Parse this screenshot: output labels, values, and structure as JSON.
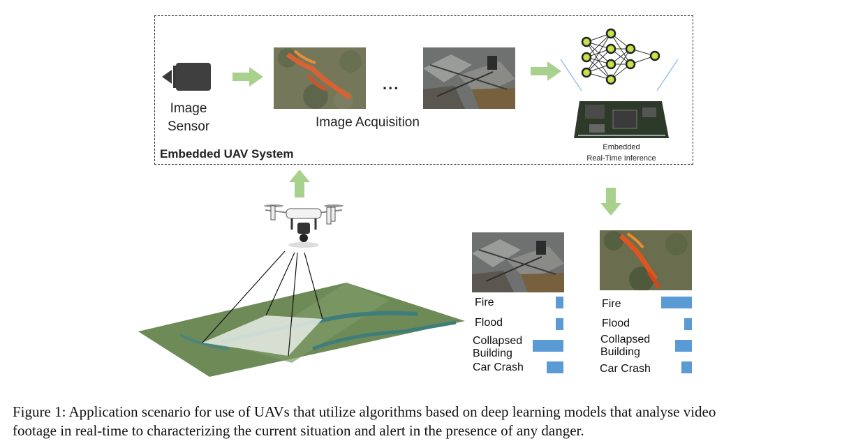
{
  "sensor_label_line1": "Image",
  "sensor_label_line2": "Sensor",
  "acquisition_label": "Image Acquisition",
  "ellipsis": "...",
  "system_label": "Embedded UAV System",
  "inference_label_line1": "Embedded",
  "inference_label_line2": "Real-Time Inference",
  "results": [
    {
      "image": "collapsed-building-photo",
      "scores": {
        "fire": 0.25,
        "flood": 0.25,
        "collapsed_building": 1.0,
        "car_crash": 0.55
      }
    },
    {
      "image": "fire-photo",
      "scores": {
        "fire": 1.0,
        "flood": 0.25,
        "collapsed_building": 0.55,
        "car_crash": 0.35
      }
    }
  ],
  "class_labels": {
    "fire": "Fire",
    "flood": "Flood",
    "collapsed_line1": "Collapsed",
    "collapsed_line2": "Building",
    "car_crash": "Car Crash"
  },
  "caption_line1": "Figure 1: Application scenario for use of UAVs that utilize algorithms based on deep learning models that analyse video",
  "caption_line2": "footage in real-time to characterizing the current situation and alert in the presence of any danger.",
  "colors": {
    "arrow": "#a9d18e",
    "bar": "#5b9bd5",
    "node": "#c4e24a"
  }
}
